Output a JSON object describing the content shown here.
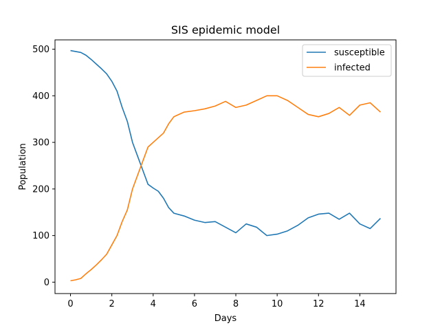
{
  "chart_data": {
    "type": "line",
    "title": "SIS epidemic model",
    "xlabel": "Days",
    "ylabel": "Population",
    "xlim": [
      -0.75,
      15.75
    ],
    "ylim": [
      -24.5,
      520
    ],
    "xticks": [
      0,
      2,
      4,
      6,
      8,
      10,
      12,
      14
    ],
    "yticks": [
      0,
      100,
      200,
      300,
      400,
      500
    ],
    "grid": false,
    "legend_position": "upper right",
    "series": [
      {
        "name": "susceptible",
        "color": "#1f77b4",
        "x": [
          0,
          0.25,
          0.5,
          0.75,
          1.0,
          1.25,
          1.5,
          1.75,
          2.0,
          2.25,
          2.5,
          2.75,
          3.0,
          3.25,
          3.5,
          3.75,
          4.0,
          4.25,
          4.5,
          4.75,
          5.0,
          5.5,
          6.0,
          6.5,
          7.0,
          7.5,
          8.0,
          8.5,
          9.0,
          9.5,
          10.0,
          10.5,
          11.0,
          11.5,
          12.0,
          12.5,
          13.0,
          13.5,
          14.0,
          14.5,
          15.0
        ],
        "values": [
          497,
          495,
          493,
          487,
          478,
          468,
          458,
          447,
          431,
          410,
          375,
          345,
          300,
          270,
          240,
          210,
          202,
          195,
          180,
          160,
          148,
          142,
          133,
          128,
          130,
          118,
          106,
          125,
          118,
          100,
          103,
          110,
          122,
          138,
          146,
          148,
          135,
          148,
          125,
          115,
          137
        ]
      },
      {
        "name": "infected",
        "color": "#ff7f0e",
        "x": [
          0,
          0.25,
          0.5,
          0.75,
          1.0,
          1.25,
          1.5,
          1.75,
          2.0,
          2.25,
          2.5,
          2.75,
          3.0,
          3.25,
          3.5,
          3.75,
          4.0,
          4.25,
          4.5,
          4.75,
          5.0,
          5.5,
          6.0,
          6.5,
          7.0,
          7.5,
          8.0,
          8.5,
          9.0,
          9.5,
          10.0,
          10.5,
          11.0,
          11.5,
          12.0,
          12.5,
          13.0,
          13.5,
          14.0,
          14.5,
          15.0
        ],
        "values": [
          3,
          5,
          8,
          18,
          27,
          37,
          48,
          60,
          80,
          100,
          130,
          155,
          200,
          230,
          260,
          290,
          300,
          310,
          320,
          340,
          355,
          365,
          368,
          372,
          378,
          388,
          375,
          380,
          390,
          400,
          400,
          390,
          375,
          360,
          355,
          362,
          375,
          358,
          380,
          385,
          365
        ]
      }
    ]
  }
}
